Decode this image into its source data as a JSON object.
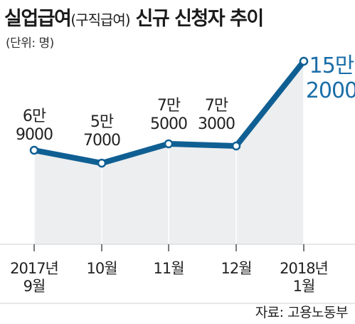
{
  "title": {
    "main": "실업급여",
    "sub": "(구직급여)",
    "rest": " 신규 신청자 추이"
  },
  "unit": "(단위: 명)",
  "source": "자료: 고용노동부",
  "colors": {
    "line": "#0f5f93",
    "area": "#eceeef",
    "highlight": "#1b6ea8"
  },
  "chart_data": {
    "type": "area",
    "title": "실업급여(구직급여) 신규 신청자 추이",
    "unit": "(단위: 명)",
    "categories": [
      [
        "2017년",
        "9월"
      ],
      [
        "10월"
      ],
      [
        "11월"
      ],
      [
        "12월"
      ],
      [
        "2018년",
        "1월"
      ]
    ],
    "values": [
      69000,
      57000,
      75000,
      73000,
      152000
    ],
    "value_labels": [
      [
        "6만",
        "9000"
      ],
      [
        "5만",
        "7000"
      ],
      [
        "7만",
        "5000"
      ],
      [
        "7만",
        "3000"
      ],
      [
        "15만",
        "2000"
      ]
    ],
    "ylim": [
      0,
      160000
    ],
    "grid": false,
    "legend": "none"
  }
}
